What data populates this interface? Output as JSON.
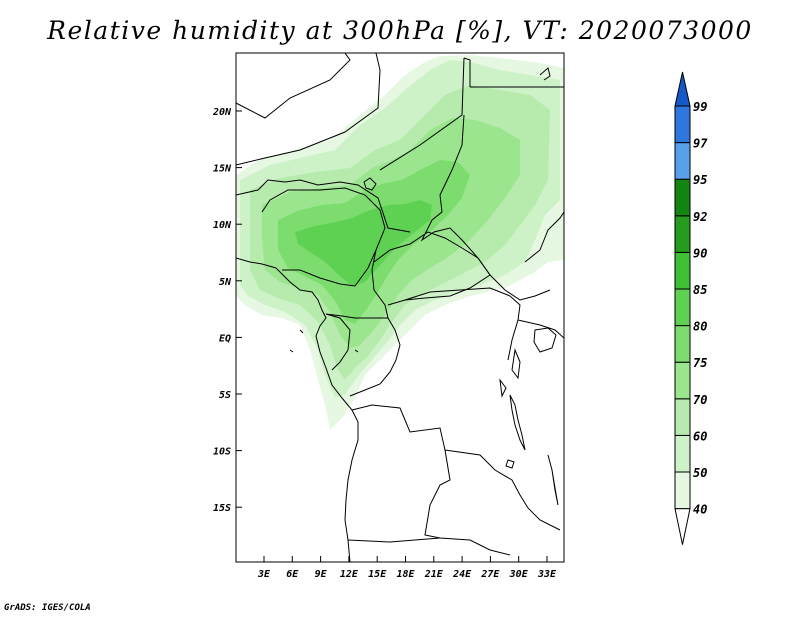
{
  "title": "Relative humidity at 300hPa [%], VT: 2020073000",
  "credit": "GrADS: IGES/COLA",
  "map": {
    "lon_labels": [
      "3E",
      "6E",
      "9E",
      "12E",
      "15E",
      "18E",
      "21E",
      "24E",
      "27E",
      "30E",
      "33E"
    ],
    "lat_labels": [
      "20N",
      "15N",
      "10N",
      "5N",
      "EQ",
      "5S",
      "10S",
      "15S"
    ],
    "colors": {
      "boundary": "#000000",
      "land": "#ffffff"
    }
  },
  "colorbar": {
    "levels": [
      "40",
      "50",
      "60",
      "70",
      "75",
      "80",
      "85",
      "90",
      "92",
      "95",
      "97",
      "99"
    ],
    "colors": [
      "#ffffff",
      "#e6f8e2",
      "#cdf2c7",
      "#b6ebad",
      "#9ce58f",
      "#7cdd6e",
      "#5fd152",
      "#3fbf35",
      "#259c1e",
      "#138512",
      "#59a0ec",
      "#2f77dc",
      "#1658c8"
    ]
  }
}
